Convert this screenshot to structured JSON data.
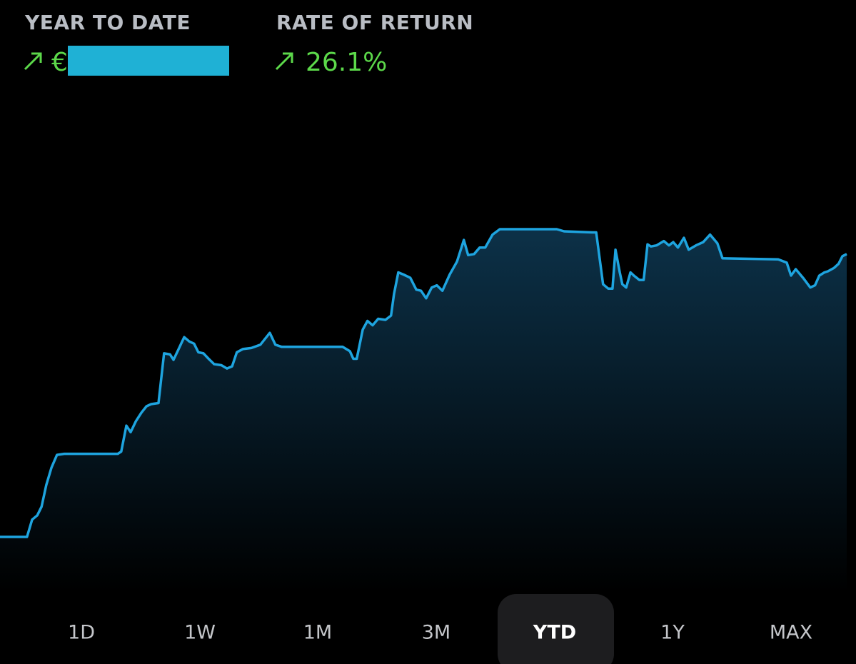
{
  "header": {
    "ytd_label": "YEAR TO DATE",
    "ytd_currency": "€",
    "ror_label": "RATE OF RETURN",
    "ror_value": "26.1%"
  },
  "chart_data": {
    "type": "area",
    "color": "#1ea4df",
    "x": [
      0,
      6.3,
      7.5,
      8.7,
      9.7,
      10.8,
      12,
      13.3,
      15,
      27.5,
      28.3,
      29.5,
      30.5,
      31.7,
      33,
      34.2,
      35.3,
      37,
      38.3,
      39.7,
      40.5,
      41.7,
      43,
      44.2,
      45.3,
      46.3,
      47.5,
      48.7,
      50,
      51.7,
      53,
      54.2,
      55.3,
      56.7,
      58.7,
      60.8,
      63,
      64.3,
      65.8,
      70,
      80,
      81.7,
      82.5,
      83.3,
      84.7,
      85.8,
      87,
      88.3,
      90,
      91.3,
      92,
      93,
      94.2,
      95.8,
      97.2,
      98.3,
      99.5,
      100.8,
      102,
      103.3,
      105,
      106.7,
      108.3,
      109.3,
      110.7,
      112,
      113.3,
      115,
      116.7,
      118.3,
      130,
      131.7,
      138.3,
      139.2,
      140.8,
      142,
      143,
      143.7,
      144.7,
      145.3,
      146.2,
      147.2,
      148,
      149.3,
      150.3,
      151.2,
      152,
      153.3,
      155,
      156.2,
      157.2,
      158.3,
      159.7,
      160.8,
      162.5,
      164.2,
      165.8,
      167.5,
      168.7,
      181.7,
      183.7,
      184.7,
      185.8,
      187.5,
      189.2,
      190.3,
      191.3,
      192.5,
      193.3,
      194.7,
      195.8,
      196.7,
      197.7
    ],
    "values": [
      0,
      0,
      1.6,
      2.0,
      2.8,
      4.8,
      6.4,
      7.6,
      7.7,
      7.7,
      7.9,
      10.3,
      9.7,
      10.7,
      11.5,
      12.1,
      12.3,
      12.4,
      17.0,
      16.9,
      16.4,
      17.4,
      18.5,
      18.1,
      17.9,
      17.1,
      17.0,
      16.5,
      16.0,
      15.9,
      15.6,
      15.8,
      17.1,
      17.4,
      17.5,
      17.8,
      18.9,
      17.8,
      17.6,
      17.6,
      17.6,
      17.2,
      16.5,
      16.5,
      19.2,
      20.0,
      19.6,
      20.2,
      20.1,
      20.5,
      22.5,
      24.5,
      24.3,
      24.0,
      22.9,
      22.8,
      22.1,
      23.1,
      23.3,
      22.8,
      24.3,
      25.5,
      27.5,
      26.1,
      26.2,
      26.8,
      26.8,
      28.0,
      28.5,
      28.5,
      28.5,
      28.3,
      28.2,
      28.2,
      23.4,
      23.0,
      23.0,
      26.6,
      24.5,
      23.4,
      23.1,
      24.5,
      24.2,
      23.8,
      23.8,
      27.1,
      26.9,
      27.0,
      27.4,
      27.0,
      27.3,
      26.8,
      27.7,
      26.6,
      27.0,
      27.3,
      28.0,
      27.2,
      25.8,
      25.7,
      25.4,
      24.2,
      24.8,
      24.0,
      23.1,
      23.3,
      24.2,
      24.5,
      24.6,
      24.9,
      25.3,
      26.0,
      26.2
    ]
  },
  "tabs": [
    "1D",
    "1W",
    "1M",
    "3M",
    "YTD",
    "1Y",
    "MAX"
  ],
  "active_tab": 4
}
